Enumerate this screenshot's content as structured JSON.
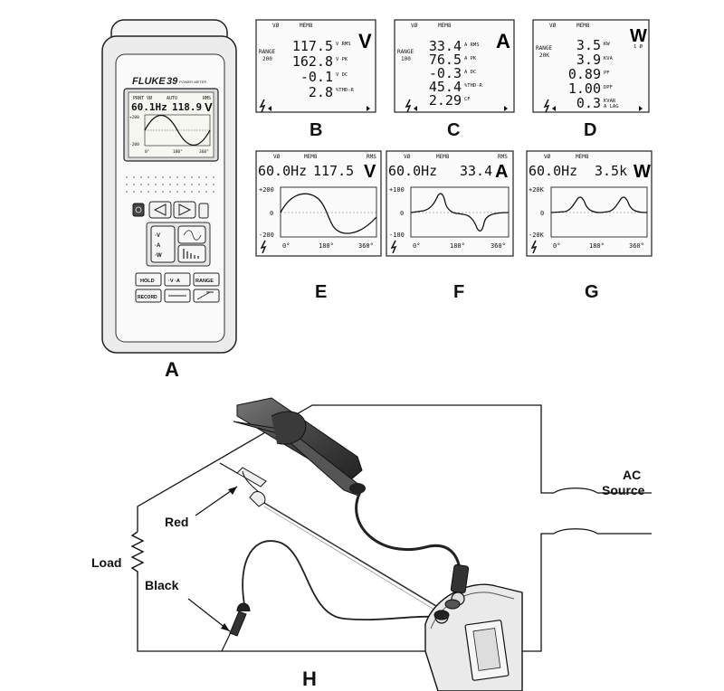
{
  "meter": {
    "brand": "FLUKE",
    "model": "39",
    "model_sub": "POWER METER",
    "display": {
      "print_label": "PRNT VØ",
      "auto_label": "AUTO",
      "rms_label": "RMS",
      "freq": "60.1Hz",
      "value": "118.9",
      "unit": "V",
      "ytop": "+200",
      "ybot": "-200",
      "x0": "0°",
      "x180": "180°",
      "x360": "360°"
    },
    "buttons": {
      "hold": "HOLD",
      "range": "RANGE",
      "record": "RECORD",
      "a_w_var": "·V ·A ·W"
    },
    "caption": "A"
  },
  "panels": {
    "B": {
      "caption": "B",
      "header_left": "VØ",
      "header_mid": "MEM8",
      "big_unit": "V",
      "range_label": "RANGE",
      "range_value": "200",
      "rows": [
        {
          "value": "117.5",
          "unit": "V RMS"
        },
        {
          "value": "162.8",
          "unit": "V PK"
        },
        {
          "value": "-0.1",
          "unit": "V DC"
        },
        {
          "value": "2.8",
          "unit": "%THD-R"
        }
      ]
    },
    "C": {
      "caption": "C",
      "header_left": "VØ",
      "header_mid": "MEM8",
      "big_unit": "A",
      "range_label": "RANGE",
      "range_value": "100",
      "rows": [
        {
          "value": "33.4",
          "unit": "A RMS"
        },
        {
          "value": "76.5",
          "unit": "A PK"
        },
        {
          "value": "-0.3",
          "unit": "A DC"
        },
        {
          "value": "45.4",
          "unit": "%THD-R"
        },
        {
          "value": "2.29",
          "unit": "CF"
        }
      ]
    },
    "D": {
      "caption": "D",
      "header_left": "VØ",
      "header_mid": "MEM8",
      "big_unit": "W",
      "phase": "1 Ø",
      "range_label": "RANGE",
      "range_value": "20K",
      "rows": [
        {
          "value": "3.5",
          "unit": "KW"
        },
        {
          "value": "3.9",
          "unit": "KVA"
        },
        {
          "value": "0.89",
          "unit": "PF"
        },
        {
          "value": "1.00",
          "unit": "DPF"
        },
        {
          "value": "0.3",
          "unit": "KVAR"
        }
      ],
      "lag": "A LAG"
    },
    "E": {
      "caption": "E",
      "header_left": "VØ",
      "header_mid": "MEM8",
      "header_right": "RMS",
      "freq": "60.0Hz",
      "value": "117.5",
      "unit": "V",
      "ytop": "+200",
      "ymid": "0",
      "ybot": "-200",
      "x0": "0°",
      "x180": "180°",
      "x360": "360°"
    },
    "F": {
      "caption": "F",
      "header_left": "VØ",
      "header_mid": "MEM8",
      "header_right": "RMS",
      "freq": "60.0Hz",
      "value": "33.4",
      "unit": "A",
      "ytop": "+100",
      "ymid": "0",
      "ybot": "-100",
      "x0": "0°",
      "x180": "180°",
      "x360": "360°"
    },
    "G": {
      "caption": "G",
      "header_left": "VØ",
      "header_mid": "MEM8",
      "freq": "60.0Hz",
      "value": "3.5k",
      "unit": "W",
      "ytop": "+20K",
      "ymid": "0",
      "ybot": "-20K",
      "x0": "0°",
      "x180": "180°",
      "x360": "360°"
    }
  },
  "circuit": {
    "caption": "H",
    "source_label_line1": "AC",
    "source_label_line2": "Source",
    "load_label": "Load",
    "red_label": "Red",
    "black_label": "Black"
  }
}
